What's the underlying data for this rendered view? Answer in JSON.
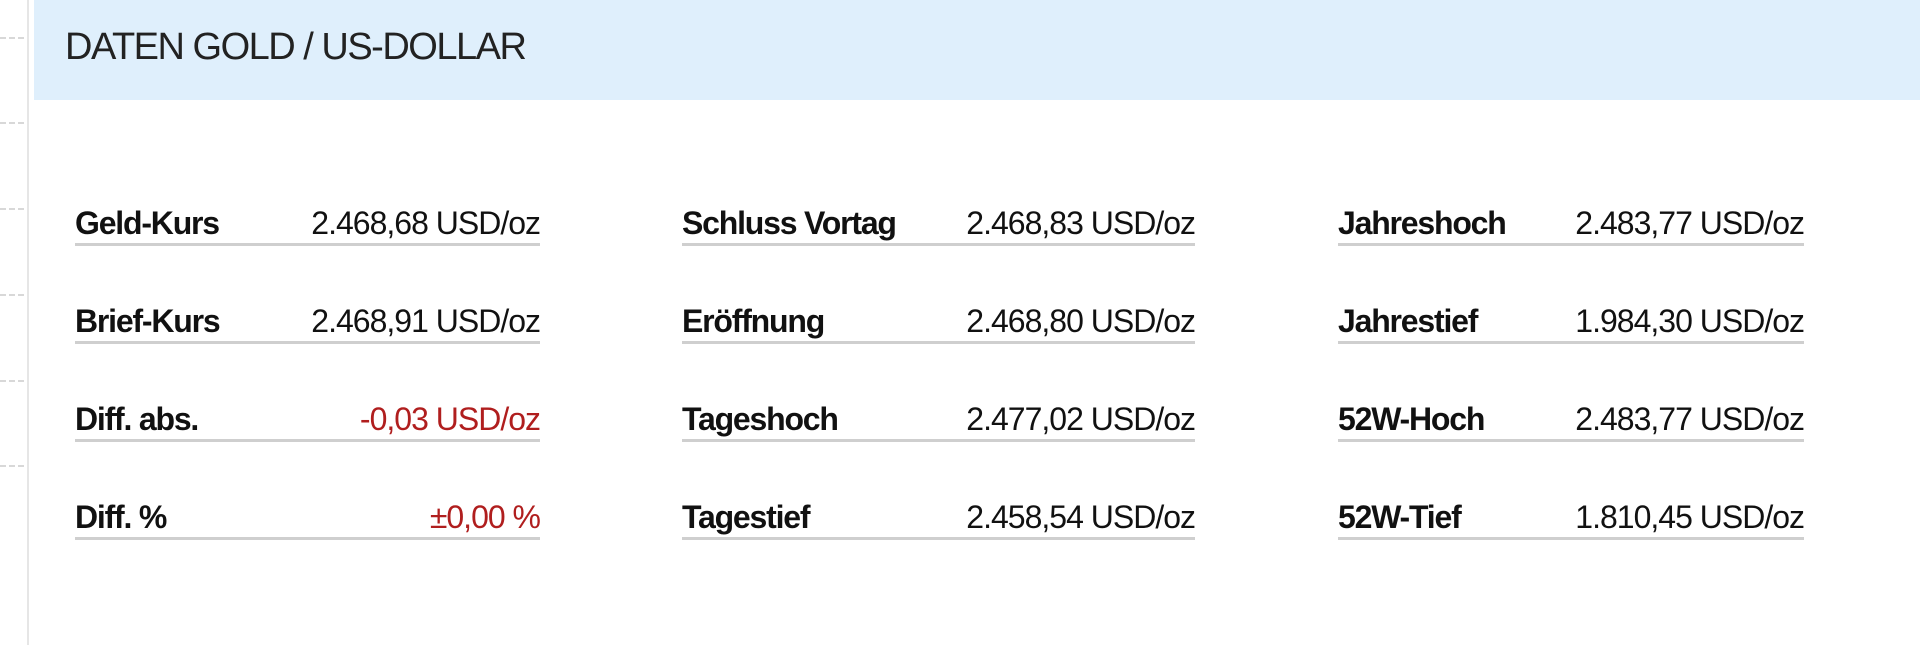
{
  "header": {
    "title": "DATEN GOLD / US-DOLLAR"
  },
  "colors": {
    "header_bg": "#dfeffc",
    "negative": "#b01e1e"
  },
  "columns": [
    [
      {
        "label": "Geld-Kurs",
        "value": "2.468,68 USD/oz"
      },
      {
        "label": "Brief-Kurs",
        "value": "2.468,91 USD/oz"
      },
      {
        "label": "Diff. abs.",
        "value": "-0,03 USD/oz",
        "negative": true
      },
      {
        "label": "Diff. %",
        "value": "±0,00 %",
        "negative": true
      }
    ],
    [
      {
        "label": "Schluss Vortag",
        "value": "2.468,83 USD/oz"
      },
      {
        "label": "Eröffnung",
        "value": "2.468,80 USD/oz"
      },
      {
        "label": "Tageshoch",
        "value": "2.477,02 USD/oz"
      },
      {
        "label": "Tagestief",
        "value": "2.458,54 USD/oz"
      }
    ],
    [
      {
        "label": "Jahreshoch",
        "value": "2.483,77 USD/oz"
      },
      {
        "label": "Jahrestief",
        "value": "1.984,30 USD/oz"
      },
      {
        "label": "52W-Hoch",
        "value": "2.483,77 USD/oz"
      },
      {
        "label": "52W-Tief",
        "value": "1.810,45 USD/oz"
      }
    ]
  ]
}
